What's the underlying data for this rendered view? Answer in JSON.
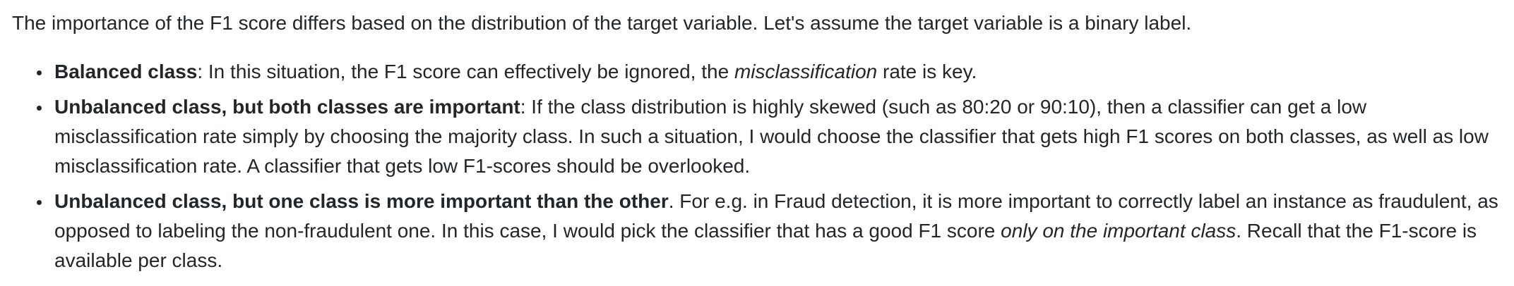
{
  "intro": "The importance of the F1 score differs based on the distribution of the target variable. Let's assume the target variable is a binary label.",
  "items": [
    {
      "title": "Balanced class",
      "text_before": ": In this situation, the F1 score can effectively be ignored, the ",
      "emphasis": "misclassification",
      "text_after": " rate is key."
    },
    {
      "title": "Unbalanced class, but both classes are important",
      "text_before": ": If the class distribution is highly skewed (such as 80:20 or 90:10), then a classifier can get a low misclassification rate simply by choosing the majority class. In such a situation, I would choose the classifier that gets high F1 scores on both classes, as well as low misclassification rate. A classifier that gets low F1-scores should be overlooked.",
      "emphasis": "",
      "text_after": ""
    },
    {
      "title": "Unbalanced class, but one class is more important than the other",
      "text_before": ". For e.g. in Fraud detection, it is more important to correctly label an instance as fraudulent, as opposed to labeling the non-fraudulent one. In this case, I would pick the classifier that has a good F1 score ",
      "emphasis": "only on the important class",
      "text_after": ". Recall that the F1-score is available per class."
    }
  ]
}
